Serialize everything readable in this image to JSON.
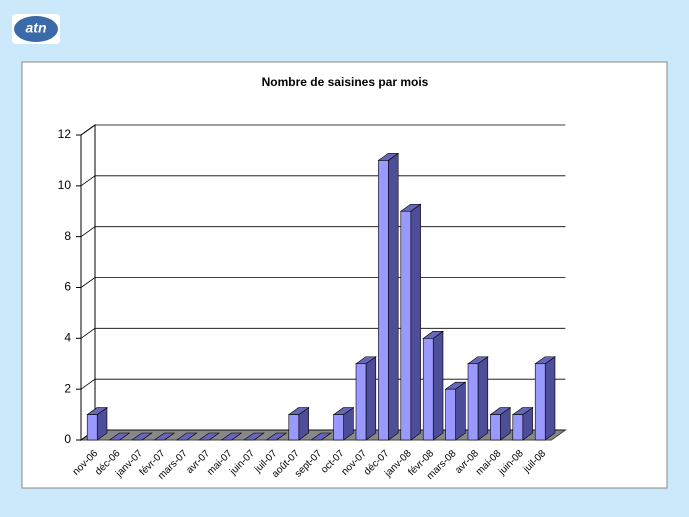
{
  "logo": "atn",
  "chart_data": {
    "type": "bar3d",
    "title": "Nombre de saisines par mois",
    "categories": [
      "nov-06",
      "déc-06",
      "janv-07",
      "févr-07",
      "mars-07",
      "avr-07",
      "mai-07",
      "juin-07",
      "juil-07",
      "août-07",
      "sept-07",
      "oct-07",
      "nov-07",
      "déc-07",
      "janv-08",
      "févr-08",
      "mars-08",
      "avr-08",
      "mai-08",
      "juin-08",
      "juil-08"
    ],
    "values": [
      1,
      0,
      0,
      0,
      0,
      0,
      0,
      0,
      0,
      1,
      0,
      1,
      3,
      11,
      9,
      4,
      2,
      3,
      1,
      1,
      3
    ],
    "color": "#9999ff",
    "ylim": [
      0,
      12
    ],
    "yticks": [
      0,
      2,
      4,
      6,
      8,
      10,
      12
    ],
    "grid": true
  }
}
